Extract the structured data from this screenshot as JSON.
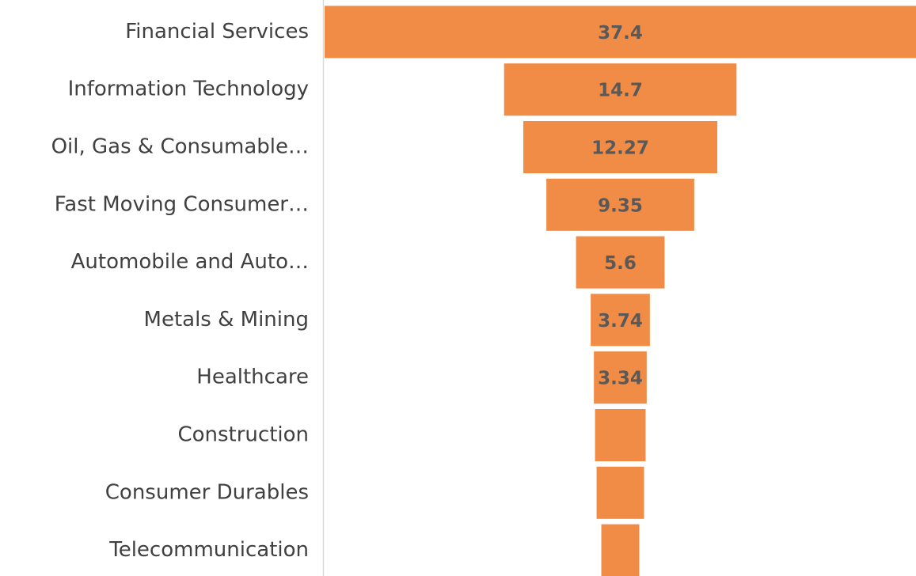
{
  "chart_data": {
    "type": "funnel",
    "categories": [
      "Financial Services",
      "Information Technology",
      "Oil, Gas & Consumable…",
      "Fast Moving Consumer…",
      "Automobile and Auto…",
      "Metals & Mining",
      "Healthcare",
      "Construction",
      "Consumer Durables",
      "Telecommunication"
    ],
    "values": [
      37.4,
      14.7,
      12.27,
      9.35,
      5.6,
      3.74,
      3.34,
      3.2,
      3.0,
      2.4
    ],
    "value_labels": [
      "37.4",
      "14.7",
      "12.27",
      "9.35",
      "5.6",
      "3.74",
      "3.34",
      null,
      null,
      null
    ],
    "color": "#f08c45"
  }
}
